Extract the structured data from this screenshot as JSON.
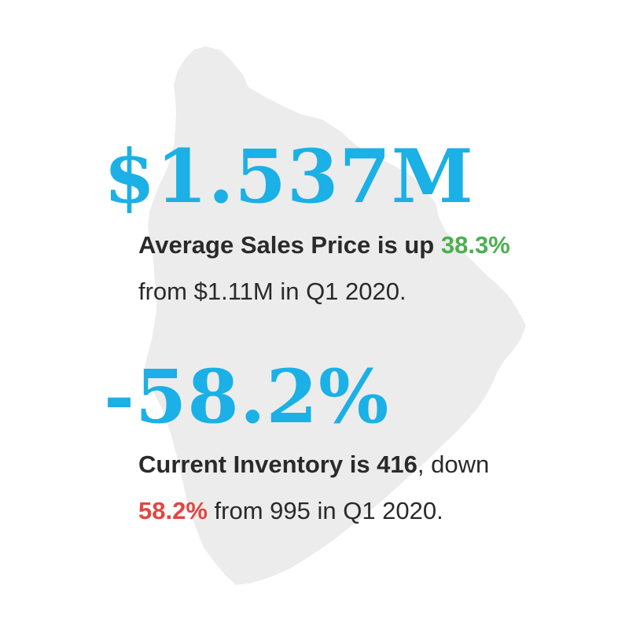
{
  "colors": {
    "accent": "#1bb0e6",
    "positive": "#4caf50",
    "negative": "#e2463f",
    "text": "#2a2a2a",
    "island_fill": "#ececec"
  },
  "background_shape": "island-silhouette",
  "price": {
    "headline": "$1.537M",
    "line1_text": "Average Sales Price is up ",
    "line1_change": "38.3%",
    "line2_text": "from $1.11M in Q1 2020."
  },
  "inventory": {
    "headline": "-58.2%",
    "line1_strong": "Current Inventory is 416",
    "line1_rest": ", down",
    "line2_change": "58.2%",
    "line2_rest": " from 995 in Q1 2020."
  }
}
